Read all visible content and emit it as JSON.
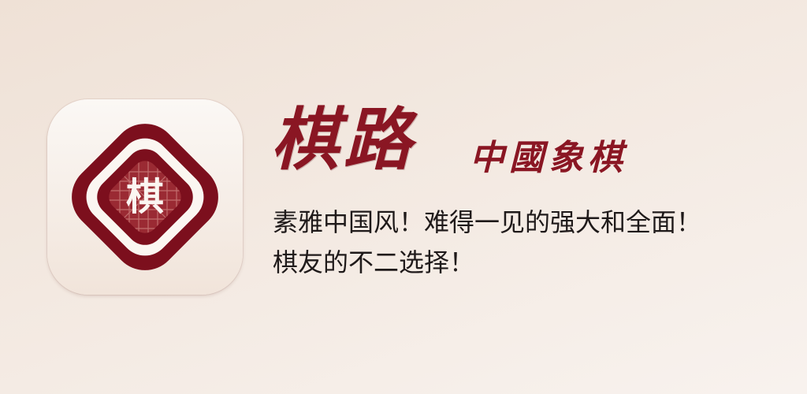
{
  "app_icon": {
    "glyph": "棋",
    "colors": {
      "crimson": "#7c0f1d",
      "board": "#9a2a33",
      "grid": "#c97a78",
      "cream": "#fbf6f1"
    }
  },
  "brand": {
    "title": "棋路",
    "subtitle": "中國象棋"
  },
  "tagline": {
    "line1": "素雅中国风！难得一见的强大和全面！",
    "line2": "棋友的不二选择！"
  }
}
